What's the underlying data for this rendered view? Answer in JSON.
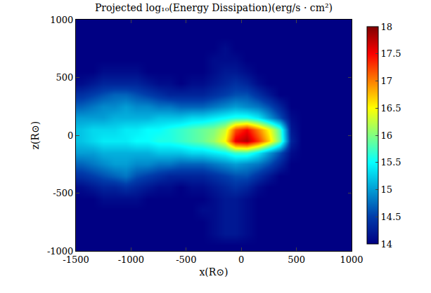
{
  "chart_data": {
    "type": "heatmap",
    "title": "Projected log₁₀(Energy Dissipation)(erg/s · cm²)",
    "x_label": "x(R⊙)",
    "y_label": "z(R⊙)",
    "color": "Jet",
    "xlim": [
      -1500,
      1000
    ],
    "xticks": [
      -1500,
      -1000,
      -500,
      0,
      500,
      1000
    ],
    "ylim": [
      -1000,
      1000
    ],
    "yticks": [
      -1000,
      -500,
      0,
      500,
      1000
    ],
    "colorbar_range": [
      14,
      18
    ],
    "colorbar_ticks": [
      14,
      14.5,
      15,
      15.5,
      16,
      16.5,
      17,
      17.5,
      18
    ],
    "x": [
      -1450,
      -1350,
      -1250,
      -1150,
      -1050,
      -950,
      -850,
      -750,
      -650,
      -550,
      -450,
      -350,
      -250,
      -150,
      -50,
      50,
      150,
      250,
      350,
      450,
      550,
      650,
      750,
      850,
      950
    ],
    "y": [
      -950,
      -850,
      -750,
      -650,
      -550,
      -450,
      -350,
      -250,
      -150,
      -50,
      50,
      150,
      250,
      350,
      450,
      550,
      650,
      750,
      850,
      950
    ],
    "cells": [
      [
        14,
        14,
        14,
        14,
        14,
        14,
        14,
        14,
        14,
        14,
        14,
        14,
        14,
        14,
        14,
        14,
        14,
        14,
        14,
        14,
        14,
        14,
        14,
        14,
        14
      ],
      [
        14,
        14,
        14,
        14,
        14,
        14,
        14,
        14,
        14,
        14,
        14,
        14,
        14.1,
        14.2,
        14.2,
        14.1,
        14,
        14,
        14,
        14,
        14,
        14,
        14,
        14,
        14
      ],
      [
        14,
        14,
        14,
        14,
        14,
        14,
        14,
        14,
        14,
        14,
        14,
        14,
        14.1,
        14.2,
        14.2,
        14.1,
        14,
        14,
        14,
        14,
        14,
        14,
        14,
        14,
        14
      ],
      [
        14,
        14,
        14,
        14,
        14,
        14,
        14,
        14,
        14,
        14,
        14,
        14.1,
        14.1,
        14.2,
        14.2,
        14.1,
        14,
        14,
        14,
        14,
        14,
        14,
        14,
        14,
        14
      ],
      [
        14,
        14,
        14.1,
        14.1,
        14.1,
        14.1,
        14,
        14,
        14,
        14,
        14,
        14,
        14.1,
        14.2,
        14.2,
        14.1,
        14,
        14,
        14,
        14,
        14,
        14,
        14,
        14,
        14
      ],
      [
        14.1,
        14.2,
        14.3,
        14.3,
        14.4,
        14.3,
        14.2,
        14.1,
        14.1,
        14,
        14.1,
        14.1,
        14.2,
        14.3,
        14.4,
        14.3,
        14.1,
        14,
        14,
        14,
        14,
        14,
        14,
        14,
        14
      ],
      [
        14.4,
        14.5,
        14.6,
        14.7,
        14.8,
        14.6,
        14.5,
        14.4,
        14.3,
        14.3,
        14.3,
        14.3,
        14.4,
        14.5,
        14.6,
        14.6,
        14.4,
        14.2,
        14,
        14,
        14,
        14,
        14,
        14,
        14
      ],
      [
        14.7,
        14.8,
        14.9,
        15,
        15,
        14.9,
        14.9,
        14.8,
        14.8,
        14.7,
        14.7,
        14.7,
        14.8,
        14.9,
        15,
        14.9,
        14.8,
        14.6,
        14.3,
        14,
        14,
        14,
        14,
        14,
        14
      ],
      [
        15,
        15,
        15.1,
        15.1,
        15.1,
        15.1,
        15.1,
        15.2,
        15.2,
        15.2,
        15.3,
        15.3,
        15.4,
        15.5,
        15.7,
        15.7,
        15.4,
        15,
        14.6,
        14.1,
        14,
        14,
        14,
        14,
        14
      ],
      [
        15.2,
        15.3,
        15.4,
        15.4,
        15.4,
        15.5,
        15.5,
        15.6,
        15.6,
        15.7,
        15.8,
        15.9,
        16.1,
        16.5,
        17.6,
        17.8,
        17.3,
        16.7,
        15.9,
        14.3,
        14,
        14,
        14,
        14,
        14
      ],
      [
        15.2,
        15.3,
        15.3,
        15.3,
        15.4,
        15.4,
        15.5,
        15.5,
        15.6,
        15.7,
        15.8,
        15.9,
        16,
        16.3,
        17.2,
        17.5,
        17,
        16.5,
        15.8,
        14.2,
        14,
        14,
        14,
        14,
        14
      ],
      [
        15,
        15,
        15,
        15.1,
        15.1,
        15.1,
        15.1,
        15.2,
        15.2,
        15.2,
        15.3,
        15.3,
        15.4,
        15.5,
        15.6,
        15.6,
        15.4,
        15,
        14.6,
        14.1,
        14,
        14,
        14,
        14,
        14
      ],
      [
        14.7,
        14.8,
        14.9,
        14.9,
        15,
        14.9,
        14.9,
        14.8,
        14.8,
        14.7,
        14.7,
        14.7,
        14.8,
        14.9,
        15,
        14.9,
        14.8,
        14.6,
        14.3,
        14,
        14,
        14,
        14,
        14,
        14
      ],
      [
        14.4,
        14.5,
        14.6,
        14.7,
        14.7,
        14.6,
        14.5,
        14.4,
        14.3,
        14.3,
        14.3,
        14.3,
        14.4,
        14.5,
        14.6,
        14.6,
        14.4,
        14.2,
        14,
        14,
        14,
        14,
        14,
        14,
        14
      ],
      [
        14.1,
        14.2,
        14.3,
        14.3,
        14.3,
        14.3,
        14.2,
        14.1,
        14.1,
        14,
        14.1,
        14.1,
        14.2,
        14.3,
        14.4,
        14.3,
        14.1,
        14,
        14,
        14,
        14,
        14,
        14,
        14,
        14
      ],
      [
        14,
        14,
        14.1,
        14.1,
        14.1,
        14.1,
        14,
        14,
        14,
        14,
        14,
        14,
        14.1,
        14.2,
        14.2,
        14.1,
        14,
        14,
        14,
        14,
        14,
        14,
        14,
        14,
        14
      ],
      [
        14,
        14,
        14,
        14,
        14,
        14,
        14,
        14,
        14,
        14,
        14,
        14,
        14.1,
        14.1,
        14.1,
        14,
        14,
        14,
        14,
        14,
        14,
        14,
        14,
        14,
        14
      ],
      [
        14,
        14,
        14,
        14,
        14,
        14,
        14,
        14,
        14,
        14,
        14,
        14,
        14,
        14.1,
        14,
        14,
        14,
        14,
        14,
        14,
        14,
        14,
        14,
        14,
        14
      ],
      [
        14,
        14,
        14,
        14,
        14,
        14,
        14,
        14,
        14,
        14,
        14,
        14,
        14,
        14,
        14,
        14,
        14,
        14,
        14,
        14,
        14,
        14,
        14,
        14,
        14
      ],
      [
        14,
        14,
        14,
        14,
        14,
        14,
        14,
        14,
        14,
        14,
        14,
        14,
        14,
        14,
        14,
        14,
        14,
        14,
        14,
        14,
        14,
        14,
        14,
        14,
        14
      ]
    ]
  }
}
